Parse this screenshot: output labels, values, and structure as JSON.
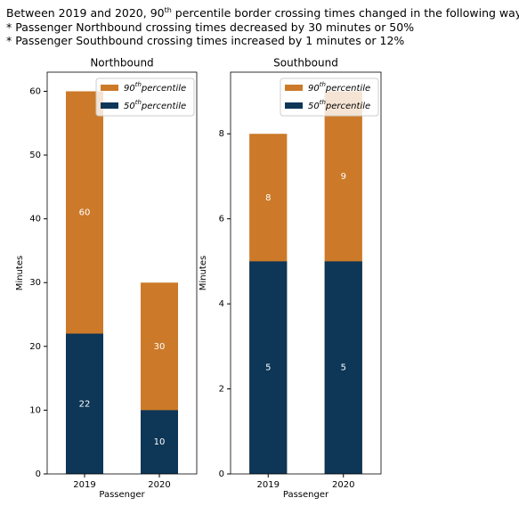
{
  "title": {
    "text": "Between 2019 and 2020, 90",
    "sup": "th",
    "rest": " percentile border crossing times changed in the following ways:"
  },
  "notes": [
    "* Passenger Northbound crossing times decreased by 30 minutes or 50%",
    "* Passenger Southbound crossing times increased by 1 minutes or 12%"
  ],
  "chart_data": [
    {
      "type": "bar",
      "title": "Northbound",
      "xlabel": "Passenger",
      "ylabel": "Minutes",
      "categories": [
        "2019",
        "2020"
      ],
      "series": [
        {
          "name": "90",
          "name_sup": "th",
          "name_rest": "percentile",
          "color": "#cc7a29",
          "values": [
            60,
            30
          ]
        },
        {
          "name": "50",
          "name_sup": "th",
          "name_rest": "percentile",
          "color": "#0d3657",
          "values": [
            22,
            10
          ]
        }
      ],
      "ylim": [
        0,
        63
      ],
      "yticks": [
        0,
        10,
        20,
        30,
        40,
        50,
        60
      ],
      "legend": "upper right"
    },
    {
      "type": "bar",
      "title": "Southbound",
      "xlabel": "Passenger",
      "ylabel": "Minutes",
      "categories": [
        "2019",
        "2020"
      ],
      "series": [
        {
          "name": "90",
          "name_sup": "th",
          "name_rest": "percentile",
          "color": "#cc7a29",
          "values": [
            8,
            9
          ]
        },
        {
          "name": "50",
          "name_sup": "th",
          "name_rest": "percentile",
          "color": "#0d3657",
          "values": [
            5,
            5
          ]
        }
      ],
      "ylim": [
        0,
        9.45
      ],
      "yticks": [
        0,
        2,
        4,
        6,
        8
      ],
      "legend": "upper right"
    }
  ]
}
